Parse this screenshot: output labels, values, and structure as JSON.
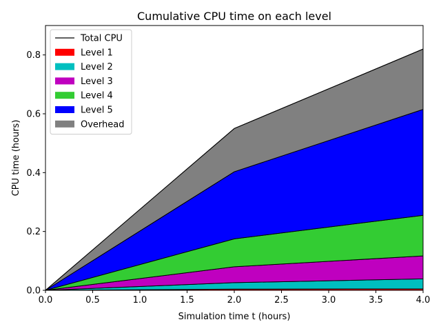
{
  "chart_data": {
    "type": "area",
    "title": "Cumulative CPU time on each level",
    "xlabel": "Simulation time t (hours)",
    "ylabel": "CPU time (hours)",
    "xlim": [
      0,
      4
    ],
    "ylim": [
      0,
      0.9
    ],
    "x": [
      0,
      2,
      4
    ],
    "x_ticks": [
      "0.0",
      "0.5",
      "1.0",
      "1.5",
      "2.0",
      "2.5",
      "3.0",
      "3.5",
      "4.0"
    ],
    "y_ticks": [
      "0.0",
      "0.2",
      "0.4",
      "0.6",
      "0.8"
    ],
    "legend_position": "top-left",
    "grid": false,
    "total_line": {
      "name": "Total CPU",
      "color": "#000000",
      "values": [
        0,
        0.55,
        0.82
      ]
    },
    "series": [
      {
        "name": "Level 1",
        "color": "#ff0000",
        "values": [
          0,
          0.004,
          0.005
        ]
      },
      {
        "name": "Level 2",
        "color": "#00bfbf",
        "values": [
          0,
          0.022,
          0.034
        ]
      },
      {
        "name": "Level 3",
        "color": "#bf00bf",
        "values": [
          0,
          0.054,
          0.078
        ]
      },
      {
        "name": "Level 4",
        "color": "#33cc33",
        "values": [
          0,
          0.095,
          0.138
        ]
      },
      {
        "name": "Level 5",
        "color": "#0000ff",
        "values": [
          0,
          0.228,
          0.36
        ]
      },
      {
        "name": "Overhead",
        "color": "#808080",
        "values": [
          0,
          0.147,
          0.205
        ]
      }
    ]
  }
}
